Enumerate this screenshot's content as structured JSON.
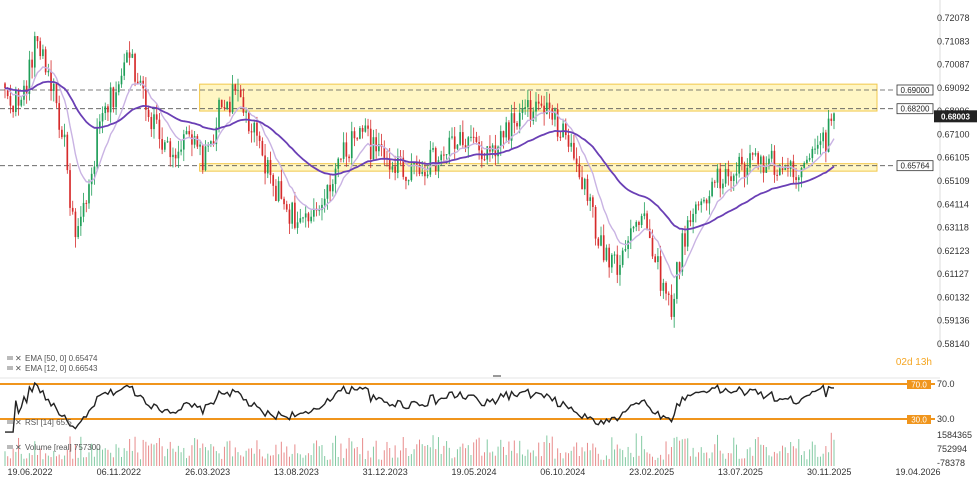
{
  "legend": {
    "ema50": "EMA [50, 0]  0.65474",
    "ema12": "EMA [12, 0]  0.66543",
    "rsi": "RSI [14]  65.5",
    "volume": "Volume [real]  757300"
  },
  "countdown": "02d 13h",
  "colors": {
    "bull": "#1e9e58",
    "bear": "#d62b2b",
    "ema50": "#6a3fb5",
    "ema12": "#c9b3e3",
    "zone_fill": "#fff3b0",
    "zone_stroke": "#f2c84b",
    "rsi_line": "#222222",
    "rsi_levels": "#f0951c"
  },
  "chart_data": [
    {
      "type": "candlestick",
      "price_ticks": [
        "0.72078",
        "0.71083",
        "0.70087",
        "0.69092",
        "0.68096",
        "0.67100",
        "0.66105",
        "0.65109",
        "0.64114",
        "0.63118",
        "0.62123",
        "0.61127",
        "0.60132",
        "0.59136",
        "0.58140"
      ],
      "ylim": [
        0.5814,
        0.72078
      ],
      "x_ticks": [
        "19.06.2022",
        "06.11.2022",
        "26.03.2023",
        "13.08.2023",
        "31.12.2023",
        "19.05.2024",
        "06.10.2024",
        "23.02.2025",
        "13.07.2025",
        "30.11.2025",
        "19.04.2026"
      ],
      "levels": [
        {
          "label": "0.69000",
          "value": 0.69,
          "style": "dashed"
        },
        {
          "label": "0.68200",
          "value": 0.682,
          "style": "dashed"
        },
        {
          "label": "0.65764",
          "value": 0.65764,
          "style": "dashed"
        }
      ],
      "current_price": {
        "label": "0.68003",
        "value": 0.68003
      },
      "zones": [
        {
          "low": 0.681,
          "high": 0.6925,
          "x_start": "26.03.2023",
          "x_end": "19.04.2026"
        },
        {
          "low": 0.6553,
          "high": 0.6585,
          "x_start": "26.03.2023",
          "x_end": "19.04.2026"
        }
      ],
      "anchors": [
        [
          0,
          0.688
        ],
        [
          6,
          0.684
        ],
        [
          12,
          0.712
        ],
        [
          18,
          0.69
        ],
        [
          22,
          0.665
        ],
        [
          26,
          0.625
        ],
        [
          30,
          0.64
        ],
        [
          35,
          0.675
        ],
        [
          40,
          0.688
        ],
        [
          46,
          0.705
        ],
        [
          51,
          0.69
        ],
        [
          56,
          0.672
        ],
        [
          62,
          0.665
        ],
        [
          68,
          0.668
        ],
        [
          74,
          0.66
        ],
        [
          80,
          0.684
        ],
        [
          86,
          0.688
        ],
        [
          92,
          0.67
        ],
        [
          98,
          0.652
        ],
        [
          104,
          0.64
        ],
        [
          110,
          0.632
        ],
        [
          114,
          0.634
        ],
        [
          120,
          0.652
        ],
        [
          126,
          0.664
        ],
        [
          131,
          0.676
        ],
        [
          136,
          0.664
        ],
        [
          142,
          0.66
        ],
        [
          148,
          0.656
        ],
        [
          154,
          0.658
        ],
        [
          160,
          0.66
        ],
        [
          166,
          0.668
        ],
        [
          172,
          0.668
        ],
        [
          178,
          0.66
        ],
        [
          184,
          0.672
        ],
        [
          190,
          0.678
        ],
        [
          196,
          0.682
        ],
        [
          200,
          0.68
        ],
        [
          206,
          0.672
        ],
        [
          211,
          0.658
        ],
        [
          216,
          0.64
        ],
        [
          220,
          0.622
        ],
        [
          226,
          0.616
        ],
        [
          231,
          0.632
        ],
        [
          236,
          0.634
        ],
        [
          240,
          0.62
        ],
        [
          244,
          0.6
        ],
        [
          246,
          0.598
        ],
        [
          250,
          0.625
        ],
        [
          255,
          0.64
        ],
        [
          260,
          0.648
        ],
        [
          265,
          0.652
        ],
        [
          270,
          0.656
        ],
        [
          275,
          0.658
        ],
        [
          280,
          0.66
        ],
        [
          285,
          0.657
        ],
        [
          290,
          0.654
        ],
        [
          295,
          0.66
        ],
        [
          300,
          0.67
        ],
        [
          303,
          0.668
        ],
        [
          306,
          0.68
        ]
      ],
      "bars": 307
    },
    {
      "type": "line",
      "name": "RSI [14]",
      "ylim": [
        0,
        100
      ],
      "levels": [
        70,
        30
      ],
      "level_labels": [
        "70.0",
        "30.0"
      ],
      "last_value": 65.5
    },
    {
      "type": "bar",
      "name": "Volume [real]",
      "y_ticks": [
        "1584365",
        "752994",
        "-78378"
      ],
      "last_value": 757300
    }
  ]
}
